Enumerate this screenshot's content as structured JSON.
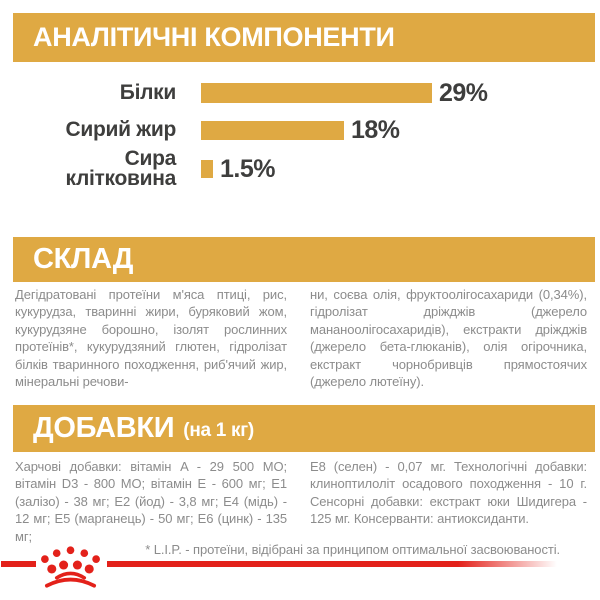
{
  "colors": {
    "gold": "#DFA943",
    "red": "#E3211A",
    "dark_gray_text": "#3E3E3D",
    "body_gray_text": "#8C8C8C",
    "white": "#FFFFFF"
  },
  "analytical": {
    "title": "АНАЛІТИЧНІ КОМПОНЕНТИ"
  },
  "chart_data": {
    "type": "bar",
    "orientation": "horizontal",
    "categories": [
      "Білки",
      "Сирий жир",
      "Сира клітковина"
    ],
    "values": [
      29,
      18,
      1.5
    ],
    "value_labels": [
      "29%",
      "18%",
      "1.5%"
    ],
    "unit": "%",
    "xlim": [
      0,
      30
    ],
    "bar_color": "#DFA943",
    "grid": false,
    "legend": false
  },
  "composition": {
    "title": "СКЛАД",
    "col1": "Дегідратовані протеїни м'яса птиці, рис, кукурудза, тваринні жири, буряковий жом, кукурудзяне борошно, ізолят рослинних протеїнів*, кукурудзяний глютен, гідролізат білків тваринного походження, риб'ячий жир, мінеральні речови-",
    "col2": "ни, соєва олія, фруктоолігосахариди (0,34%), гідролізат дріжджів (джерело мананоолігосахаридів), екстракти дріжджів (джерело бета-глюканів), олія огірочника, екстракт чорнобривців прямостоячих (джерело лютеїну)."
  },
  "additives": {
    "title": "ДОБАВКИ",
    "title_suffix": "(на 1 кг)",
    "col1": "Харчові добавки: вітамін A - 29 500 МО; вітамін D3 - 800 МО; вітамін E - 600 мг; E1 (залізо) - 38 мг; E2 (йод) - 3,8 мг; E4 (мідь) - 12 мг; E5 (марганець) - 50 мг; E6 (цинк) - 135 мг;",
    "col2": "E8 (селен) - 0,07 мг. Технологічні добавки: клиноптилоліт осадового походження - 10 г. Сенсорні добавки: екстракт юки Шидигера - 125 мг. Консерванти: антиоксиданти."
  },
  "footnote": "* L.I.P. - протеїни, відібрані за принципом оптимальної засвоюваності.",
  "logo": {
    "icon": "royal-canin-crown-icon"
  }
}
